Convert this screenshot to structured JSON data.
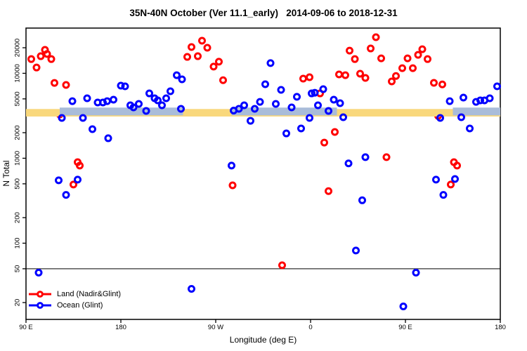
{
  "title": "35N-40N October (Ver 11.1_early)   2014-09-06 to 2018-12-31",
  "chart_data": {
    "type": "scatter",
    "title": "35N-40N October (Ver 11.1_early)   2014-09-06 to 2018-12-31",
    "xlabel": "Longitude (deg E)",
    "ylabel": "N Total",
    "x_axis": {
      "min": 90,
      "max": 540,
      "tick_values": [
        90,
        180,
        270,
        360,
        450,
        540
      ],
      "tick_labels": [
        "90 E",
        "180",
        "90 W",
        "0",
        "90 E",
        "180"
      ]
    },
    "y_axis": {
      "scale": "log",
      "tick_values": [
        20,
        50,
        100,
        200,
        500,
        1000,
        2000,
        5000,
        10000,
        20000
      ],
      "tick_labels": [
        "20",
        "50",
        "100",
        "200",
        "500",
        "1000",
        "2000",
        "5000",
        "10000",
        "20000"
      ]
    },
    "reference_line": {
      "n": 50,
      "color": "#000000"
    },
    "bands": [
      {
        "name": "yellow-band",
        "color": "#F9D87C",
        "n_min": 3100,
        "n_max": 3800,
        "lon_segments": [
          [
            90,
            540
          ]
        ]
      },
      {
        "name": "blue-band",
        "color": "#A9BCD9",
        "n_min": 3200,
        "n_max": 3950,
        "lon_segments": [
          [
            122,
            239
          ],
          [
            285,
            385
          ],
          [
            495,
            540
          ]
        ]
      }
    ],
    "series": [
      {
        "name": "Land (Nadir&Glint)",
        "color": "#FF0000",
        "points": [
          [
            95,
            14700
          ],
          [
            104,
            15900
          ],
          [
            108,
            18900
          ],
          [
            110,
            16900
          ],
          [
            114,
            14700
          ],
          [
            100,
            11700
          ],
          [
            117,
            7700
          ],
          [
            128,
            7300
          ],
          [
            122,
            3280
          ],
          [
            139,
            900
          ],
          [
            141,
            820
          ],
          [
            135,
            490
          ],
          [
            243,
            15600
          ],
          [
            247,
            20400
          ],
          [
            253,
            15900
          ],
          [
            257,
            24200
          ],
          [
            262,
            20000
          ],
          [
            268,
            12000
          ],
          [
            273,
            13700
          ],
          [
            277,
            8300
          ],
          [
            286,
            480
          ],
          [
            333,
            55
          ],
          [
            353,
            8650
          ],
          [
            359,
            9000
          ],
          [
            369,
            5800
          ],
          [
            373,
            1530
          ],
          [
            377,
            410
          ],
          [
            383,
            2040
          ],
          [
            387,
            9700
          ],
          [
            393,
            9500
          ],
          [
            397,
            18500
          ],
          [
            402,
            14700
          ],
          [
            407,
            9900
          ],
          [
            412,
            8830
          ],
          [
            417,
            19600
          ],
          [
            422,
            26600
          ],
          [
            427,
            15000
          ],
          [
            432,
            1030
          ],
          [
            437,
            8020
          ],
          [
            441,
            9300
          ],
          [
            447,
            11500
          ],
          [
            452,
            15000
          ],
          [
            457,
            11500
          ],
          [
            462,
            16500
          ],
          [
            466,
            19200
          ],
          [
            471,
            14700
          ],
          [
            477,
            7720
          ],
          [
            481,
            3150
          ],
          [
            485,
            7400
          ],
          [
            493,
            490
          ],
          [
            496,
            900
          ],
          [
            499,
            820
          ]
        ]
      },
      {
        "name": "Ocean (Glint)",
        "color": "#0000FF",
        "points": [
          [
            102,
            45
          ],
          [
            121,
            550
          ],
          [
            124,
            2980
          ],
          [
            128,
            370
          ],
          [
            134,
            4700
          ],
          [
            139,
            560
          ],
          [
            144,
            2980
          ],
          [
            148,
            5080
          ],
          [
            153,
            2200
          ],
          [
            158,
            4530
          ],
          [
            163,
            4530
          ],
          [
            167,
            4700
          ],
          [
            168,
            1720
          ],
          [
            173,
            4890
          ],
          [
            180,
            7160
          ],
          [
            184,
            7020
          ],
          [
            189,
            4200
          ],
          [
            192,
            3970
          ],
          [
            197,
            4360
          ],
          [
            204,
            3610
          ],
          [
            207,
            5800
          ],
          [
            212,
            5080
          ],
          [
            215,
            4800
          ],
          [
            219,
            4200
          ],
          [
            223,
            5080
          ],
          [
            227,
            6150
          ],
          [
            233,
            9500
          ],
          [
            237,
            3820
          ],
          [
            238,
            8500
          ],
          [
            247,
            29
          ],
          [
            285,
            820
          ],
          [
            287,
            3640
          ],
          [
            292,
            3820
          ],
          [
            297,
            4200
          ],
          [
            303,
            2760
          ],
          [
            307,
            3820
          ],
          [
            312,
            4610
          ],
          [
            317,
            7430
          ],
          [
            322,
            13200
          ],
          [
            327,
            4360
          ],
          [
            332,
            6380
          ],
          [
            337,
            1960
          ],
          [
            342,
            3970
          ],
          [
            347,
            5290
          ],
          [
            351,
            2240
          ],
          [
            359,
            2980
          ],
          [
            361,
            5800
          ],
          [
            364,
            5910
          ],
          [
            367,
            4200
          ],
          [
            372,
            6500
          ],
          [
            377,
            3610
          ],
          [
            382,
            4890
          ],
          [
            388,
            4450
          ],
          [
            391,
            3040
          ],
          [
            396,
            870
          ],
          [
            403,
            82
          ],
          [
            409,
            320
          ],
          [
            412,
            1030
          ],
          [
            448,
            18
          ],
          [
            460,
            45
          ],
          [
            479,
            560
          ],
          [
            483,
            2980
          ],
          [
            486,
            370
          ],
          [
            492,
            4700
          ],
          [
            497,
            570
          ],
          [
            503,
            3040
          ],
          [
            505,
            5180
          ],
          [
            511,
            2240
          ],
          [
            517,
            4610
          ],
          [
            521,
            4800
          ],
          [
            525,
            4800
          ],
          [
            530,
            5080
          ],
          [
            537,
            7020
          ]
        ]
      }
    ],
    "legend": {
      "position": "bottom-left",
      "entries": [
        "Land (Nadir&Glint)",
        "Ocean (Glint)"
      ]
    }
  }
}
